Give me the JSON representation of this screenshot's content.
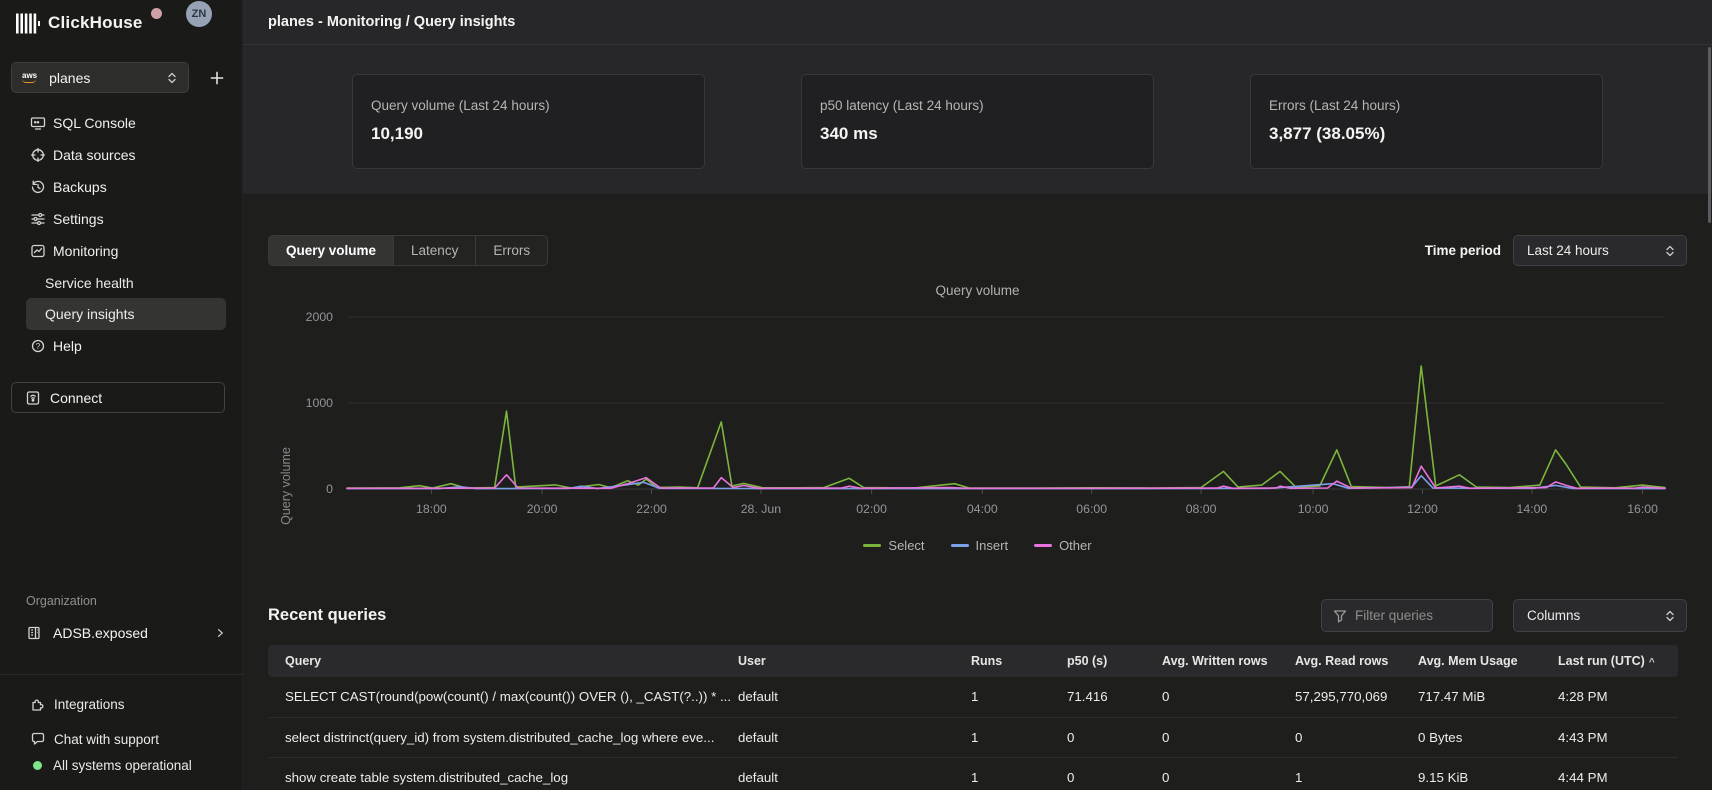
{
  "app": {
    "brand": "ClickHouse",
    "avatar_initials": "ZN"
  },
  "sidebar": {
    "selector": {
      "value": "planes",
      "provider": "aws"
    },
    "nav": [
      {
        "label": "SQL Console",
        "icon": "sql-console-icon"
      },
      {
        "label": "Data sources",
        "icon": "data-sources-icon"
      },
      {
        "label": "Backups",
        "icon": "backups-icon"
      },
      {
        "label": "Settings",
        "icon": "settings-icon"
      },
      {
        "label": "Monitoring",
        "icon": "monitoring-icon"
      },
      {
        "label": "Service health"
      },
      {
        "label": "Query insights",
        "active": true
      },
      {
        "label": "Help",
        "icon": "help-icon"
      }
    ],
    "connect_label": "Connect",
    "organization": {
      "heading": "Organization",
      "name": "ADSB.exposed"
    },
    "footer": [
      {
        "label": "Integrations",
        "icon": "integrations-icon"
      },
      {
        "label": "Chat with support",
        "icon": "chat-icon"
      },
      {
        "label": "All systems operational",
        "icon": "status-dot"
      }
    ]
  },
  "header": {
    "breadcrumb": "planes - Monitoring / Query insights"
  },
  "stats": [
    {
      "label": "Query volume (Last 24 hours)",
      "value": "10,190"
    },
    {
      "label": "p50 latency (Last 24 hours)",
      "value": "340 ms"
    },
    {
      "label": "Errors (Last 24 hours)",
      "value": "3,877 (38.05%)"
    }
  ],
  "tabs": [
    {
      "label": "Query volume"
    },
    {
      "label": "Latency"
    },
    {
      "label": "Errors"
    }
  ],
  "time_period": {
    "label": "Time period",
    "value": "Last 24 hours"
  },
  "chart_data": {
    "type": "line",
    "title": "Query volume",
    "ylabel": "Query volume",
    "ylim": [
      0,
      2000
    ],
    "y_ticks": [
      0,
      1000,
      2000
    ],
    "x_ticks": [
      {
        "pos": 0.064,
        "label": "18:00"
      },
      {
        "pos": 0.148,
        "label": "20:00"
      },
      {
        "pos": 0.231,
        "label": "22:00"
      },
      {
        "pos": 0.314,
        "label": "28. Jun"
      },
      {
        "pos": 0.398,
        "label": "02:00"
      },
      {
        "pos": 0.482,
        "label": "04:00"
      },
      {
        "pos": 0.565,
        "label": "06:00"
      },
      {
        "pos": 0.648,
        "label": "08:00"
      },
      {
        "pos": 0.733,
        "label": "10:00"
      },
      {
        "pos": 0.816,
        "label": "12:00"
      },
      {
        "pos": 0.899,
        "label": "14:00"
      },
      {
        "pos": 0.983,
        "label": "16:00"
      }
    ],
    "legend_position": "bottom",
    "series": [
      {
        "name": "Select",
        "color": "#7CB53E",
        "points": [
          [
            0,
            10
          ],
          [
            0.04,
            14
          ],
          [
            0.055,
            38
          ],
          [
            0.065,
            12
          ],
          [
            0.079,
            62
          ],
          [
            0.09,
            12
          ],
          [
            0.112,
            16
          ],
          [
            0.121,
            905
          ],
          [
            0.128,
            22
          ],
          [
            0.158,
            48
          ],
          [
            0.17,
            12
          ],
          [
            0.191,
            52
          ],
          [
            0.2,
            15
          ],
          [
            0.213,
            95
          ],
          [
            0.221,
            45
          ],
          [
            0.227,
            115
          ],
          [
            0.235,
            18
          ],
          [
            0.252,
            22
          ],
          [
            0.266,
            14
          ],
          [
            0.284,
            780
          ],
          [
            0.292,
            35
          ],
          [
            0.301,
            65
          ],
          [
            0.315,
            15
          ],
          [
            0.345,
            14
          ],
          [
            0.362,
            18
          ],
          [
            0.381,
            125
          ],
          [
            0.392,
            16
          ],
          [
            0.43,
            12
          ],
          [
            0.461,
            62
          ],
          [
            0.472,
            12
          ],
          [
            0.52,
            10
          ],
          [
            0.565,
            14
          ],
          [
            0.61,
            12
          ],
          [
            0.648,
            18
          ],
          [
            0.665,
            205
          ],
          [
            0.676,
            22
          ],
          [
            0.694,
            45
          ],
          [
            0.708,
            205
          ],
          [
            0.72,
            20
          ],
          [
            0.738,
            35
          ],
          [
            0.751,
            455
          ],
          [
            0.762,
            28
          ],
          [
            0.79,
            18
          ],
          [
            0.806,
            25
          ],
          [
            0.815,
            1430
          ],
          [
            0.826,
            35
          ],
          [
            0.844,
            165
          ],
          [
            0.857,
            22
          ],
          [
            0.882,
            16
          ],
          [
            0.905,
            45
          ],
          [
            0.917,
            455
          ],
          [
            0.925,
            285
          ],
          [
            0.936,
            22
          ],
          [
            0.962,
            14
          ],
          [
            0.983,
            45
          ],
          [
            1,
            16
          ]
        ]
      },
      {
        "name": "Insert",
        "color": "#7B9FE8",
        "points": [
          [
            0,
            5
          ],
          [
            0.07,
            5
          ],
          [
            0.086,
            26
          ],
          [
            0.098,
            5
          ],
          [
            0.168,
            6
          ],
          [
            0.178,
            32
          ],
          [
            0.19,
            5
          ],
          [
            0.213,
            50
          ],
          [
            0.225,
            78
          ],
          [
            0.237,
            8
          ],
          [
            0.3,
            6
          ],
          [
            0.4,
            5
          ],
          [
            0.5,
            5
          ],
          [
            0.6,
            5
          ],
          [
            0.7,
            8
          ],
          [
            0.748,
            62
          ],
          [
            0.76,
            8
          ],
          [
            0.808,
            22
          ],
          [
            0.815,
            155
          ],
          [
            0.824,
            10
          ],
          [
            0.9,
            8
          ],
          [
            0.917,
            42
          ],
          [
            0.93,
            6
          ],
          [
            1,
            5
          ]
        ]
      },
      {
        "name": "Other",
        "color": "#E872DE",
        "points": [
          [
            0,
            8
          ],
          [
            0.05,
            8
          ],
          [
            0.112,
            10
          ],
          [
            0.121,
            165
          ],
          [
            0.13,
            10
          ],
          [
            0.2,
            8
          ],
          [
            0.213,
            62
          ],
          [
            0.227,
            132
          ],
          [
            0.238,
            10
          ],
          [
            0.278,
            12
          ],
          [
            0.284,
            132
          ],
          [
            0.293,
            16
          ],
          [
            0.301,
            42
          ],
          [
            0.312,
            8
          ],
          [
            0.375,
            10
          ],
          [
            0.381,
            32
          ],
          [
            0.39,
            8
          ],
          [
            0.458,
            16
          ],
          [
            0.47,
            8
          ],
          [
            0.56,
            8
          ],
          [
            0.66,
            10
          ],
          [
            0.665,
            32
          ],
          [
            0.672,
            8
          ],
          [
            0.705,
            12
          ],
          [
            0.708,
            32
          ],
          [
            0.716,
            8
          ],
          [
            0.744,
            12
          ],
          [
            0.751,
            92
          ],
          [
            0.762,
            10
          ],
          [
            0.808,
            16
          ],
          [
            0.815,
            265
          ],
          [
            0.826,
            12
          ],
          [
            0.844,
            32
          ],
          [
            0.852,
            8
          ],
          [
            0.91,
            16
          ],
          [
            0.917,
            82
          ],
          [
            0.925,
            42
          ],
          [
            0.933,
            8
          ],
          [
            0.978,
            10
          ],
          [
            0.983,
            22
          ],
          [
            1,
            8
          ]
        ]
      }
    ]
  },
  "recent_queries": {
    "title": "Recent queries",
    "filter_placeholder": "Filter queries",
    "filter_icon": "funnel-icon",
    "columns_button": "Columns",
    "columns": [
      "Query",
      "User",
      "Runs",
      "p50 (s)",
      "Avg. Written rows",
      "Avg. Read rows",
      "Avg. Mem Usage",
      "Last run (UTC)"
    ],
    "sort": {
      "column": "Last run (UTC)",
      "direction": "asc",
      "caret": "^"
    },
    "rows": [
      {
        "query": "SELECT CAST(round(pow(count() / max(count()) OVER (), _CAST(?..)) * ...",
        "user": "default",
        "runs": "1",
        "p50": "71.416",
        "avg_written": "0",
        "avg_read": "57,295,770,069",
        "avg_mem": "717.47 MiB",
        "last_run": "4:28 PM"
      },
      {
        "query": "select distrinct(query_id) from system.distributed_cache_log where eve...",
        "user": "default",
        "runs": "1",
        "p50": "0",
        "avg_written": "0",
        "avg_read": "0",
        "avg_mem": "0 Bytes",
        "last_run": "4:43 PM"
      },
      {
        "query": "show create table system.distributed_cache_log",
        "user": "default",
        "runs": "1",
        "p50": "0",
        "avg_written": "0",
        "avg_read": "1",
        "avg_mem": "9.15 KiB",
        "last_run": "4:44 PM"
      }
    ]
  }
}
